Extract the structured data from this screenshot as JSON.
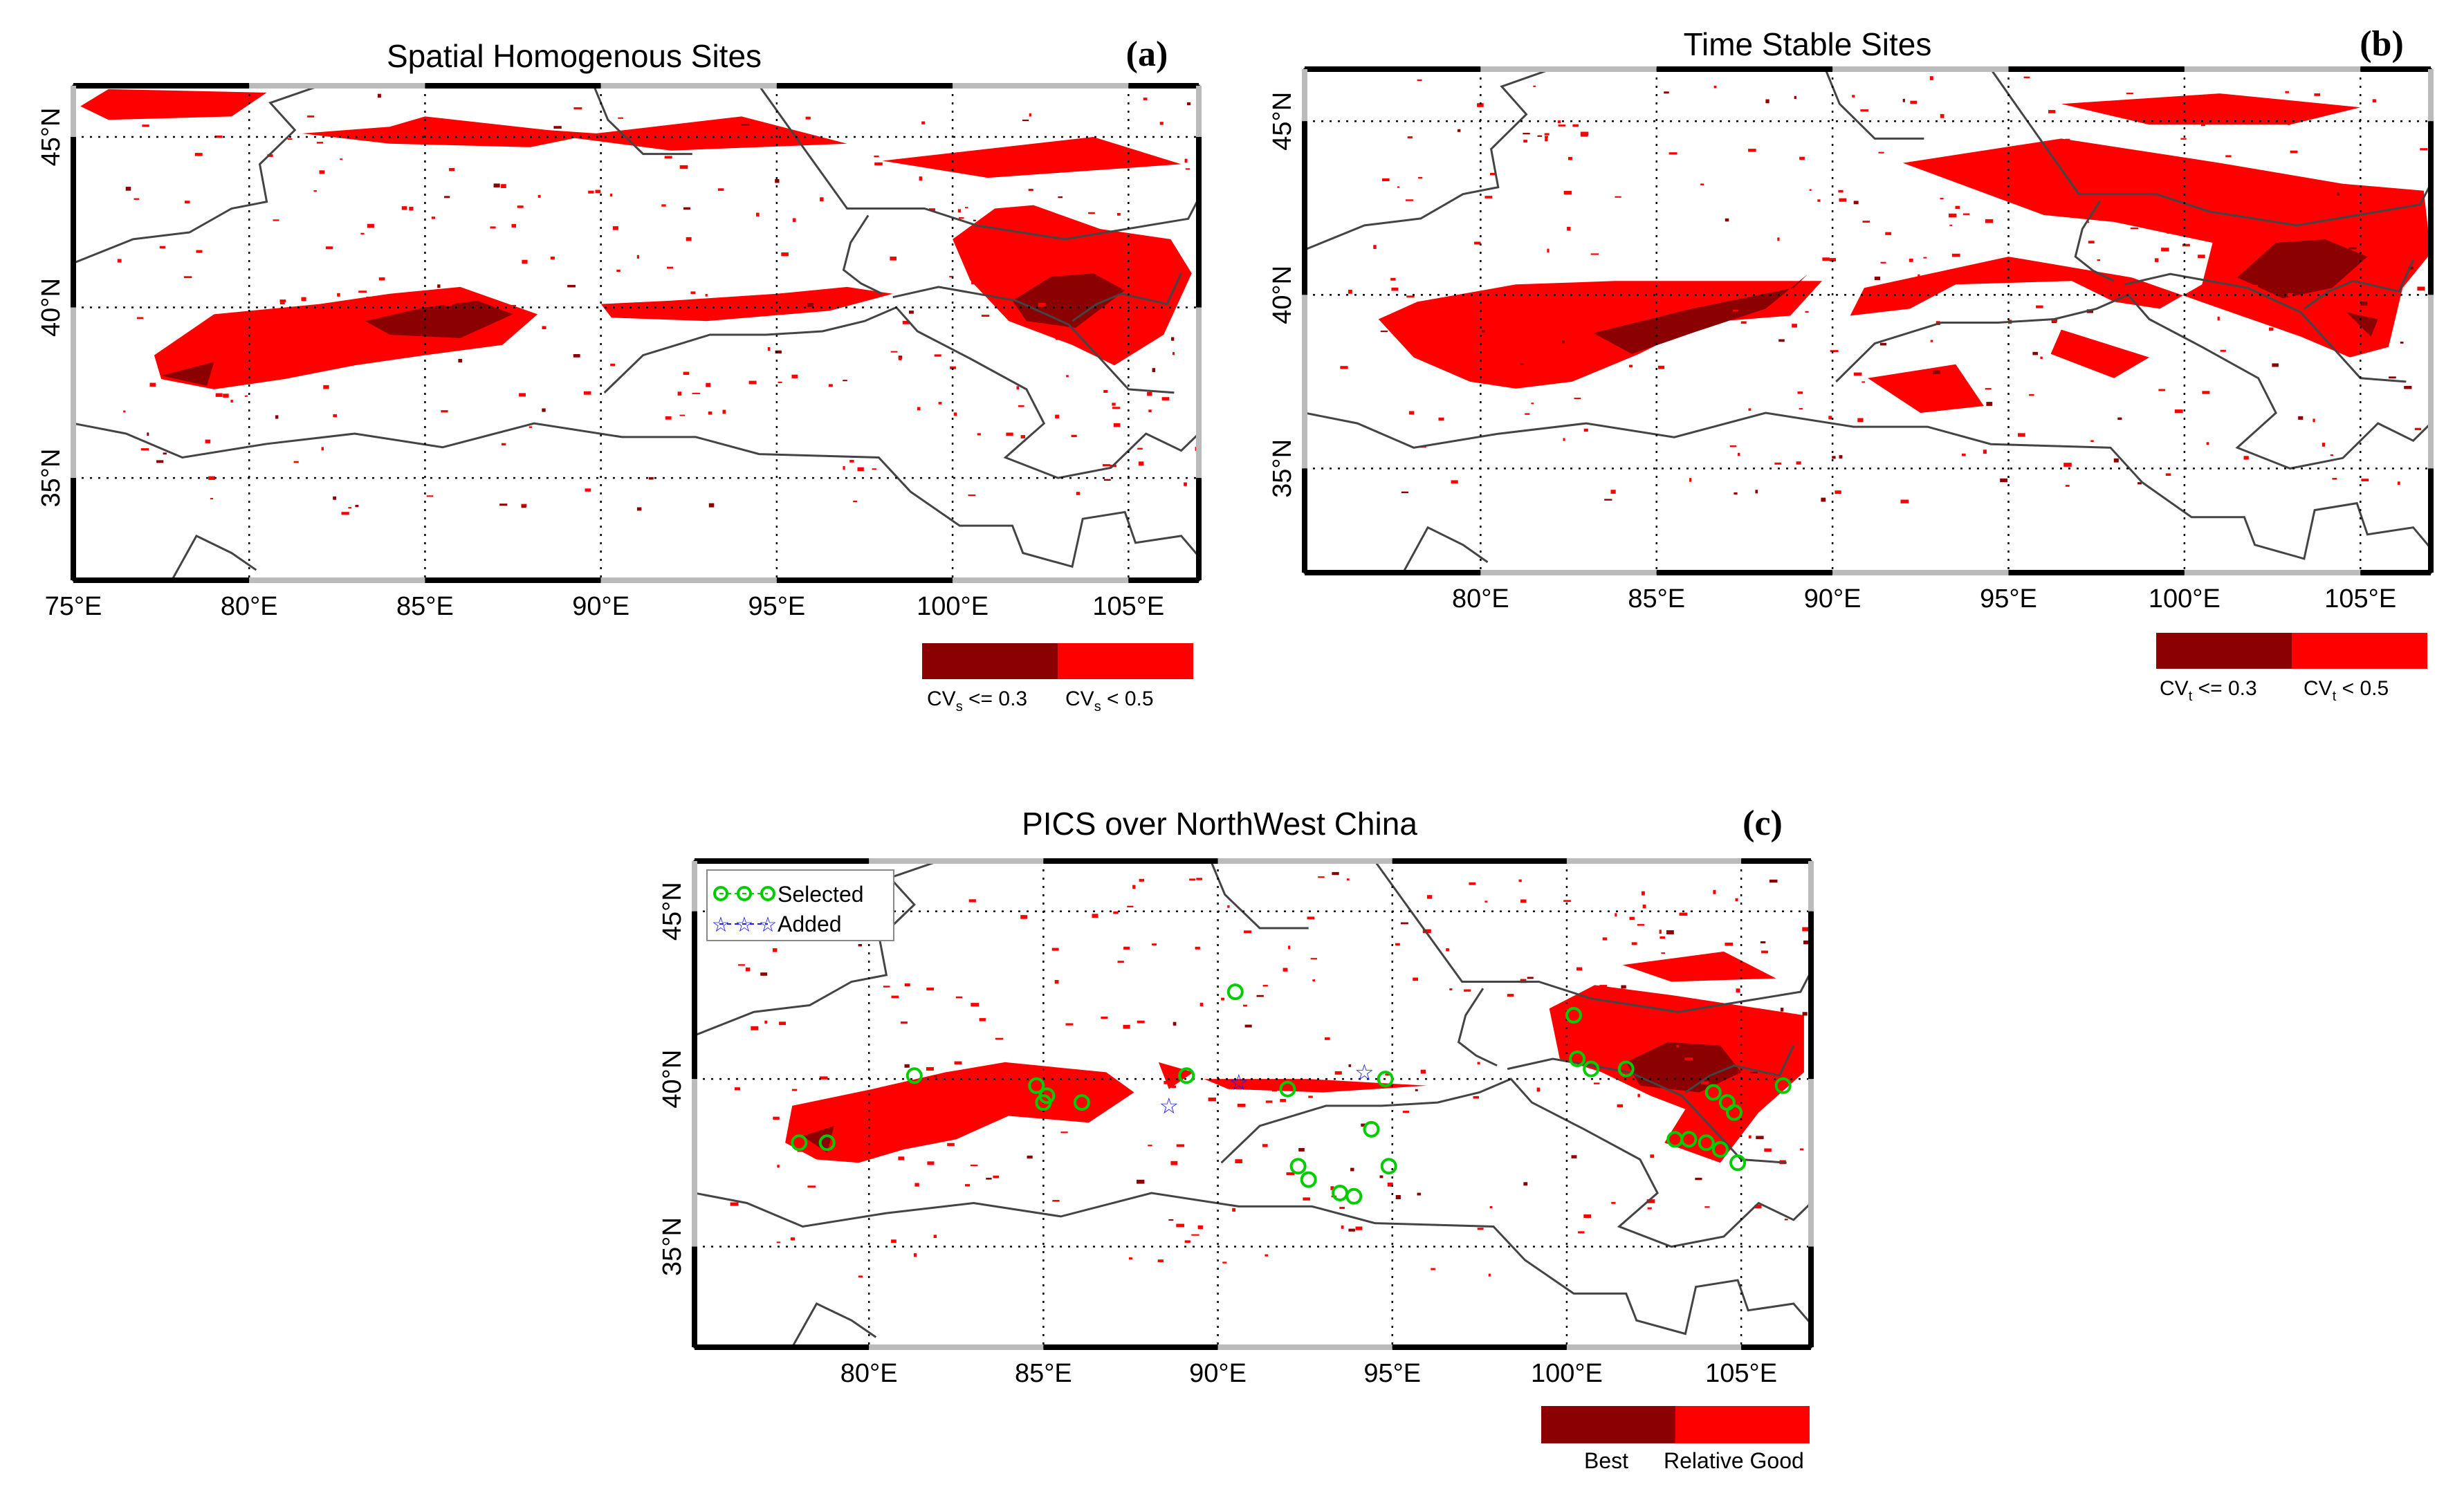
{
  "panels": {
    "a": {
      "title": "Spatial Homogenous Sites",
      "label": "(a)",
      "x_ticks": [
        "75°E",
        "80°E",
        "85°E",
        "90°E",
        "95°E",
        "100°E",
        "105°E"
      ],
      "y_ticks": [
        "45°N",
        "40°N",
        "35°N"
      ],
      "legend": {
        "dark_label": "CV",
        "dark_sub": "s",
        "dark_rest": " <= 0.3",
        "light_label": "CV",
        "light_sub": "s",
        "light_rest": " < 0.5"
      }
    },
    "b": {
      "title": "Time Stable Sites",
      "label": "(b)",
      "x_ticks": [
        "80°E",
        "85°E",
        "90°E",
        "95°E",
        "100°E",
        "105°E"
      ],
      "y_ticks": [
        "45°N",
        "40°N",
        "35°N"
      ],
      "legend": {
        "dark_label": "CV",
        "dark_sub": "t",
        "dark_rest": " <= 0.3",
        "light_label": "CV",
        "light_sub": "t",
        "light_rest": " < 0.5"
      }
    },
    "c": {
      "title": "PICS over NorthWest China",
      "label": "(c)",
      "x_ticks": [
        "80°E",
        "85°E",
        "90°E",
        "95°E",
        "100°E",
        "105°E"
      ],
      "y_ticks": [
        "45°N",
        "40°N",
        "35°N"
      ],
      "legend_box": {
        "selected": "Selected",
        "added": "Added"
      },
      "legend": {
        "dark": "Best",
        "light": "Relative Good"
      },
      "selected_sites": [
        [
          78,
          38.1
        ],
        [
          78.8,
          38.1
        ],
        [
          81.3,
          40.1
        ],
        [
          84.8,
          39.8
        ],
        [
          85,
          39.3
        ],
        [
          85.1,
          39.5
        ],
        [
          86.1,
          39.3
        ],
        [
          89.1,
          40.1
        ],
        [
          90.5,
          42.6
        ],
        [
          92,
          39.7
        ],
        [
          92.3,
          37.4
        ],
        [
          92.6,
          37
        ],
        [
          93.5,
          36.6
        ],
        [
          93.9,
          36.5
        ],
        [
          94.4,
          38.5
        ],
        [
          94.8,
          40
        ],
        [
          94.9,
          37.4
        ],
        [
          100.2,
          41.9
        ],
        [
          100.3,
          40.6
        ],
        [
          100.7,
          40.3
        ],
        [
          101.7,
          40.3
        ],
        [
          103.1,
          38.2
        ],
        [
          103.5,
          38.2
        ],
        [
          104,
          38.1
        ],
        [
          104.2,
          39.6
        ],
        [
          104.4,
          37.9
        ],
        [
          104.6,
          39.3
        ],
        [
          104.8,
          39
        ],
        [
          104.9,
          37.5
        ],
        [
          106.2,
          39.8
        ]
      ],
      "added_sites": [
        [
          88.6,
          39.2
        ],
        [
          90.6,
          39.9
        ],
        [
          94.2,
          40.2
        ]
      ]
    }
  },
  "colors": {
    "dark": "#8b0000",
    "light": "#ff0000",
    "grid": "#000000",
    "border": "#444444",
    "green": "#00cc00",
    "blue": "#1a1aff"
  }
}
